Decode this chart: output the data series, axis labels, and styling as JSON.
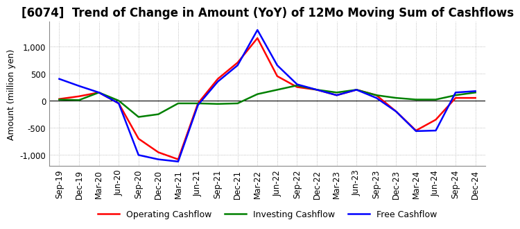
{
  "title": "[6074]  Trend of Change in Amount (YoY) of 12Mo Moving Sum of Cashflows",
  "ylabel": "Amount (million yen)",
  "ylim": [
    -1200,
    1450
  ],
  "yticks": [
    -1000,
    -500,
    0,
    500,
    1000
  ],
  "x_labels": [
    "Sep-19",
    "Dec-19",
    "Mar-20",
    "Jun-20",
    "Sep-20",
    "Dec-20",
    "Mar-21",
    "Jun-21",
    "Sep-21",
    "Dec-21",
    "Mar-22",
    "Jun-22",
    "Sep-22",
    "Dec-22",
    "Mar-23",
    "Jun-23",
    "Sep-23",
    "Dec-23",
    "Mar-24",
    "Jun-24",
    "Sep-24",
    "Dec-24"
  ],
  "operating": [
    30,
    80,
    150,
    -50,
    -700,
    -950,
    -1080,
    -50,
    400,
    700,
    1150,
    450,
    250,
    200,
    100,
    200,
    100,
    -200,
    -550,
    -350,
    50,
    50
  ],
  "investing": [
    20,
    10,
    150,
    0,
    -300,
    -250,
    -50,
    -50,
    -60,
    -50,
    120,
    200,
    280,
    200,
    150,
    200,
    100,
    50,
    20,
    20,
    100,
    150
  ],
  "free": [
    400,
    270,
    150,
    -50,
    -1000,
    -1080,
    -1120,
    -80,
    350,
    650,
    1300,
    650,
    300,
    200,
    100,
    200,
    50,
    -200,
    -560,
    -550,
    150,
    175
  ],
  "operating_color": "#FF0000",
  "investing_color": "#008000",
  "free_color": "#0000FF",
  "background_color": "#FFFFFF",
  "grid_color": "#AAAAAA",
  "title_fontsize": 12,
  "axis_fontsize": 8.5,
  "label_fontsize": 9
}
